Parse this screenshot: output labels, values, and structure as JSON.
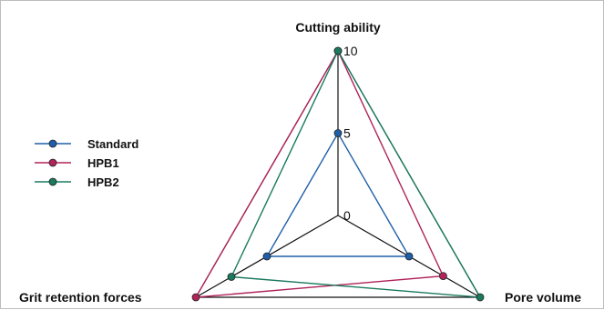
{
  "chart_data": {
    "type": "radar",
    "axes": [
      "Cutting ability",
      "Pore volume",
      "Grit retention forces"
    ],
    "scale": {
      "min": 0,
      "max": 10,
      "ticks": [
        0,
        5,
        10
      ]
    },
    "series": [
      {
        "name": "Standard",
        "values": [
          5,
          5,
          5
        ],
        "color": "#1f5ea8"
      },
      {
        "name": "HPB1",
        "values": [
          10,
          7.4,
          10
        ],
        "color": "#b0245a"
      },
      {
        "name": "HPB2",
        "values": [
          10,
          10,
          7.5
        ],
        "color": "#1a7a5e"
      }
    ],
    "legend_position": "left",
    "grid": "triangle-outline"
  }
}
